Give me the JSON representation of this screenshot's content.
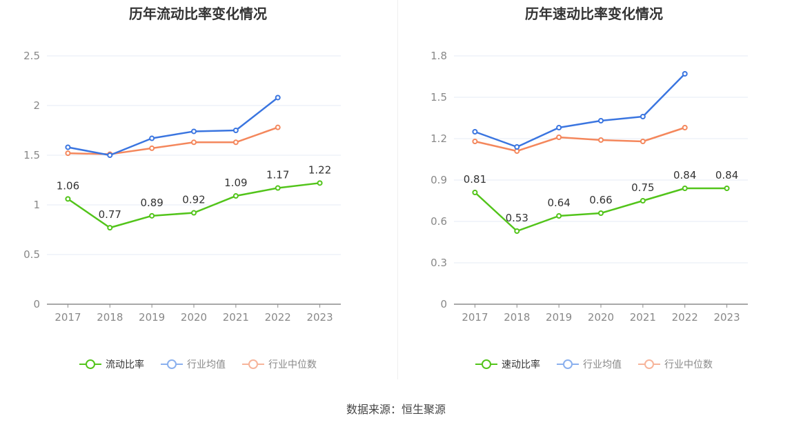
{
  "footer": {
    "source": "数据来源：恒生聚源"
  },
  "colors": {
    "main": "#52c41a",
    "avg": "#3a75e0",
    "median": "#f4875c",
    "avg_legend": "#8ab0ee",
    "median_legend": "#f7b49a"
  },
  "chart_data": [
    {
      "type": "line",
      "title": "历年流动比率变化情况",
      "categories": [
        "2017",
        "2018",
        "2019",
        "2020",
        "2021",
        "2022",
        "2023"
      ],
      "ylim": [
        0,
        2.5
      ],
      "yticks": [
        "0",
        "0.5",
        "1",
        "1.5",
        "2",
        "2.5"
      ],
      "grid": true,
      "legend_position": "bottom",
      "series": [
        {
          "name": "流动比率",
          "values": [
            1.06,
            0.77,
            0.89,
            0.92,
            1.09,
            1.17,
            1.22
          ],
          "labels": [
            "1.06",
            "0.77",
            "0.89",
            "0.92",
            "1.09",
            "1.17",
            "1.22"
          ]
        },
        {
          "name": "行业均值",
          "values": [
            1.58,
            1.5,
            1.67,
            1.74,
            1.75,
            2.08,
            null
          ]
        },
        {
          "name": "行业中位数",
          "values": [
            1.52,
            1.51,
            1.57,
            1.63,
            1.63,
            1.78,
            null
          ]
        }
      ]
    },
    {
      "type": "line",
      "title": "历年速动比率变化情况",
      "categories": [
        "2017",
        "2018",
        "2019",
        "2020",
        "2021",
        "2022",
        "2023"
      ],
      "ylim": [
        0,
        1.8
      ],
      "yticks": [
        "0",
        "0.3",
        "0.6",
        "0.9",
        "1.2",
        "1.5",
        "1.8"
      ],
      "grid": true,
      "legend_position": "bottom",
      "series": [
        {
          "name": "速动比率",
          "values": [
            0.81,
            0.53,
            0.64,
            0.66,
            0.75,
            0.84,
            0.84
          ],
          "labels": [
            "0.81",
            "0.53",
            "0.64",
            "0.66",
            "0.75",
            "0.84",
            "0.84"
          ]
        },
        {
          "name": "行业均值",
          "values": [
            1.25,
            1.14,
            1.28,
            1.33,
            1.36,
            1.67,
            null
          ]
        },
        {
          "name": "行业中位数",
          "values": [
            1.18,
            1.11,
            1.21,
            1.19,
            1.18,
            1.28,
            null
          ]
        }
      ]
    }
  ]
}
